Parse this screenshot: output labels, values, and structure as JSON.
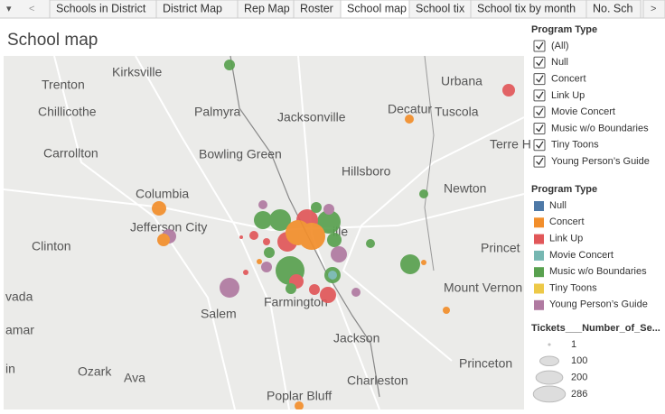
{
  "tab_bar": {
    "nav": [
      "▾",
      "<",
      ">"
    ],
    "tabs": [
      "Schools in District",
      "District Map",
      "Rep Map",
      "Roster",
      "School map",
      "School tix",
      "School tix by month",
      "No. Sch"
    ],
    "active": 4
  },
  "title": "School map",
  "map": {
    "places": [
      "Kirksville",
      "Trenton",
      "Urbana",
      "Chillicothe",
      "Palmyra",
      "Jacksonville",
      "Decatur",
      "Tuscola",
      "Terre H",
      "Carrollton",
      "Bowling Green",
      "Hillsboro",
      "Newton",
      "Columbia",
      "Jefferson City",
      "Clinton",
      "Princet",
      "Mount Vernon",
      "vada",
      "Salem",
      "Farmington",
      "ille",
      "amar",
      "Jackson",
      "Princeton",
      "in",
      "Ozark",
      "Ava",
      "Charleston",
      "Poplar Bluff"
    ]
  },
  "filter": {
    "title": "Program Type",
    "items": [
      "(All)",
      "Null",
      "Concert",
      "Link Up",
      "Movie Concert",
      "Music w/o Boundaries",
      "Tiny Toons",
      "Young Person’s Guide"
    ]
  },
  "color_legend": {
    "title": "Program Type",
    "items": [
      {
        "name": "Null",
        "color": "#4e79a7"
      },
      {
        "name": "Concert",
        "color": "#f28e2b"
      },
      {
        "name": "Link Up",
        "color": "#e15759"
      },
      {
        "name": "Movie Concert",
        "color": "#76b7b2"
      },
      {
        "name": "Music w/o Boundaries",
        "color": "#59a14f"
      },
      {
        "name": "Tiny Toons",
        "color": "#edc948"
      },
      {
        "name": "Young Person’s Guide",
        "color": "#b07aa1"
      }
    ]
  },
  "size_legend": {
    "title": "Tickets___Number_of_Se...",
    "values": [
      1,
      100,
      200,
      286
    ]
  }
}
